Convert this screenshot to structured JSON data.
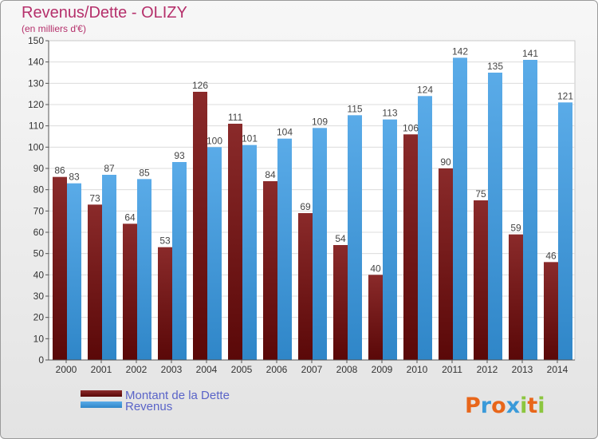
{
  "header": {
    "title": "Revenus/Dette - OLIZY",
    "subtitle": "(en milliers d'€)"
  },
  "logo": {
    "text": "Proxiti"
  },
  "colors": {
    "debt_top": "#8a2a2a",
    "debt_bottom": "#5a0808",
    "revenue_top": "#5aabe8",
    "revenue_bottom": "#2f86c8",
    "title": "#b5306b",
    "legend_text": "#5a64c8"
  },
  "chart_data": {
    "type": "bar",
    "title": "Revenus/Dette - OLIZY",
    "subtitle": "(en milliers d'€)",
    "categories": [
      "2000",
      "2001",
      "2002",
      "2003",
      "2004",
      "2005",
      "2006",
      "2007",
      "2008",
      "2009",
      "2010",
      "2011",
      "2012",
      "2013",
      "2014"
    ],
    "series": [
      {
        "name": "Montant de la Dette",
        "values": [
          86,
          73,
          64,
          53,
          126,
          111,
          84,
          69,
          54,
          40,
          106,
          90,
          75,
          59,
          46
        ]
      },
      {
        "name": "Revenus",
        "values": [
          83,
          87,
          85,
          93,
          100,
          101,
          104,
          109,
          115,
          113,
          124,
          142,
          135,
          141,
          121
        ]
      }
    ],
    "ylim": [
      0,
      150
    ],
    "yticks": [
      0,
      10,
      20,
      30,
      40,
      50,
      60,
      70,
      80,
      90,
      100,
      110,
      120,
      130,
      140,
      150
    ],
    "grid": true,
    "legend": "bottom-left",
    "data_labels": true
  }
}
